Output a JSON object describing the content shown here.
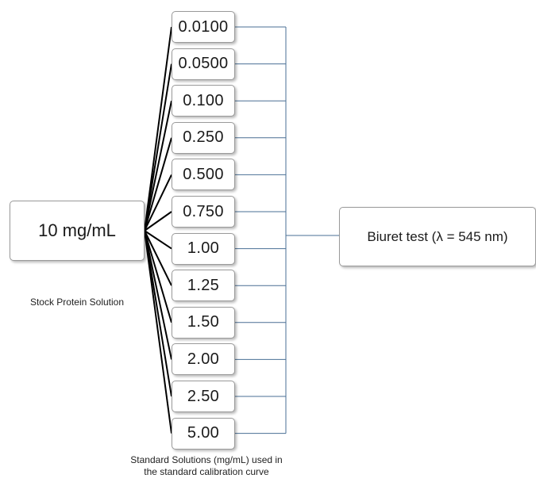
{
  "stock": {
    "value": "10 mg/mL",
    "caption": "Stock Protein Solution"
  },
  "standards": {
    "values": [
      "0.0100",
      "0.0500",
      "0.100",
      "0.250",
      "0.500",
      "0.750",
      "1.00",
      "1.25",
      "1.50",
      "2.00",
      "2.50",
      "5.00"
    ],
    "caption_line1": "Standard Solutions (mg/mL) used in",
    "caption_line2": "the standard calibration curve"
  },
  "test": {
    "label": "Biuret test (λ = 545 nm)"
  },
  "colors": {
    "fan_line": "#000000",
    "bracket_line": "#4a6f94",
    "box_border": "#9a9a9a"
  }
}
